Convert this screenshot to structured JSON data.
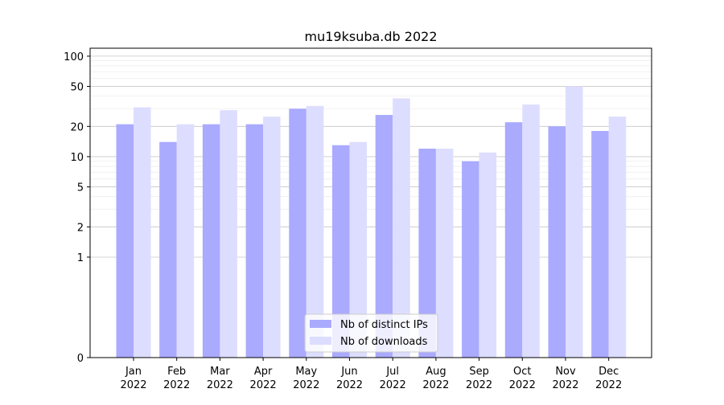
{
  "chart_data": {
    "type": "bar",
    "title": "mu19ksuba.db 2022",
    "xlabel": "",
    "ylabel": "",
    "yscale": "symlog",
    "ylim": [
      0,
      120
    ],
    "yticks": [
      0,
      1,
      2,
      5,
      10,
      20,
      50,
      100
    ],
    "ytick_labels": [
      "0",
      "1",
      "2",
      "5",
      "10",
      "20",
      "50",
      "100"
    ],
    "grid": true,
    "legend_position": "bottom-center",
    "categories": [
      "Jan",
      "Feb",
      "Mar",
      "Apr",
      "May",
      "Jun",
      "Jul",
      "Aug",
      "Sep",
      "Oct",
      "Nov",
      "Dec"
    ],
    "category_year": "2022",
    "series": [
      {
        "name": "Nb of distinct IPs",
        "color": "#aaaaff",
        "values": [
          21,
          14,
          21,
          21,
          30,
          13,
          26,
          12,
          9,
          22,
          20,
          18
        ]
      },
      {
        "name": "Nb of downloads",
        "color": "#ddddff",
        "values": [
          31,
          21,
          29,
          25,
          32,
          14,
          38,
          12,
          11,
          33,
          50,
          25
        ]
      }
    ]
  }
}
